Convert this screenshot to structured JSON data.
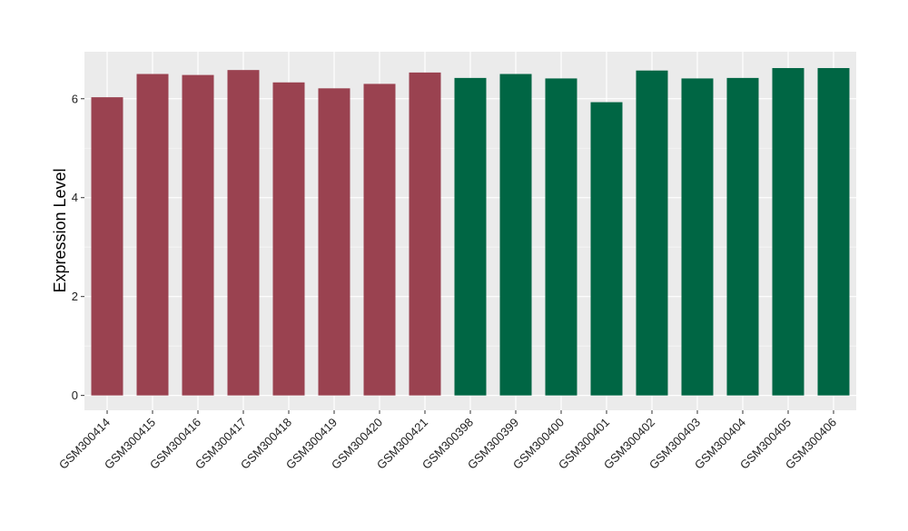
{
  "chart_data": {
    "type": "bar",
    "title": "",
    "xlabel": "",
    "ylabel": "Expression Level",
    "ylim": [
      -0.3,
      6.95
    ],
    "yticks": [
      0,
      2,
      4,
      6
    ],
    "grid": true,
    "legend": "none",
    "colors": {
      "panel": "#EBEBEB",
      "grid_major": "#FFFFFF",
      "grid_minor": "#F5F5F5",
      "tick": "#333333"
    },
    "categories": [
      "GSM300414",
      "GSM300415",
      "GSM300416",
      "GSM300417",
      "GSM300418",
      "GSM300419",
      "GSM300420",
      "GSM300421",
      "GSM300398",
      "GSM300399",
      "GSM300400",
      "GSM300401",
      "GSM300402",
      "GSM300403",
      "GSM300404",
      "GSM300405",
      "GSM300406"
    ],
    "values": [
      6.03,
      6.5,
      6.48,
      6.58,
      6.33,
      6.21,
      6.3,
      6.53,
      6.42,
      6.5,
      6.41,
      5.93,
      6.57,
      6.41,
      6.42,
      6.62,
      6.62
    ],
    "bar_colors": [
      "#9A4250",
      "#9A4250",
      "#9A4250",
      "#9A4250",
      "#9A4250",
      "#9A4250",
      "#9A4250",
      "#9A4250",
      "#006644",
      "#006644",
      "#006644",
      "#006644",
      "#006644",
      "#006644",
      "#006644",
      "#006644",
      "#006644"
    ]
  }
}
